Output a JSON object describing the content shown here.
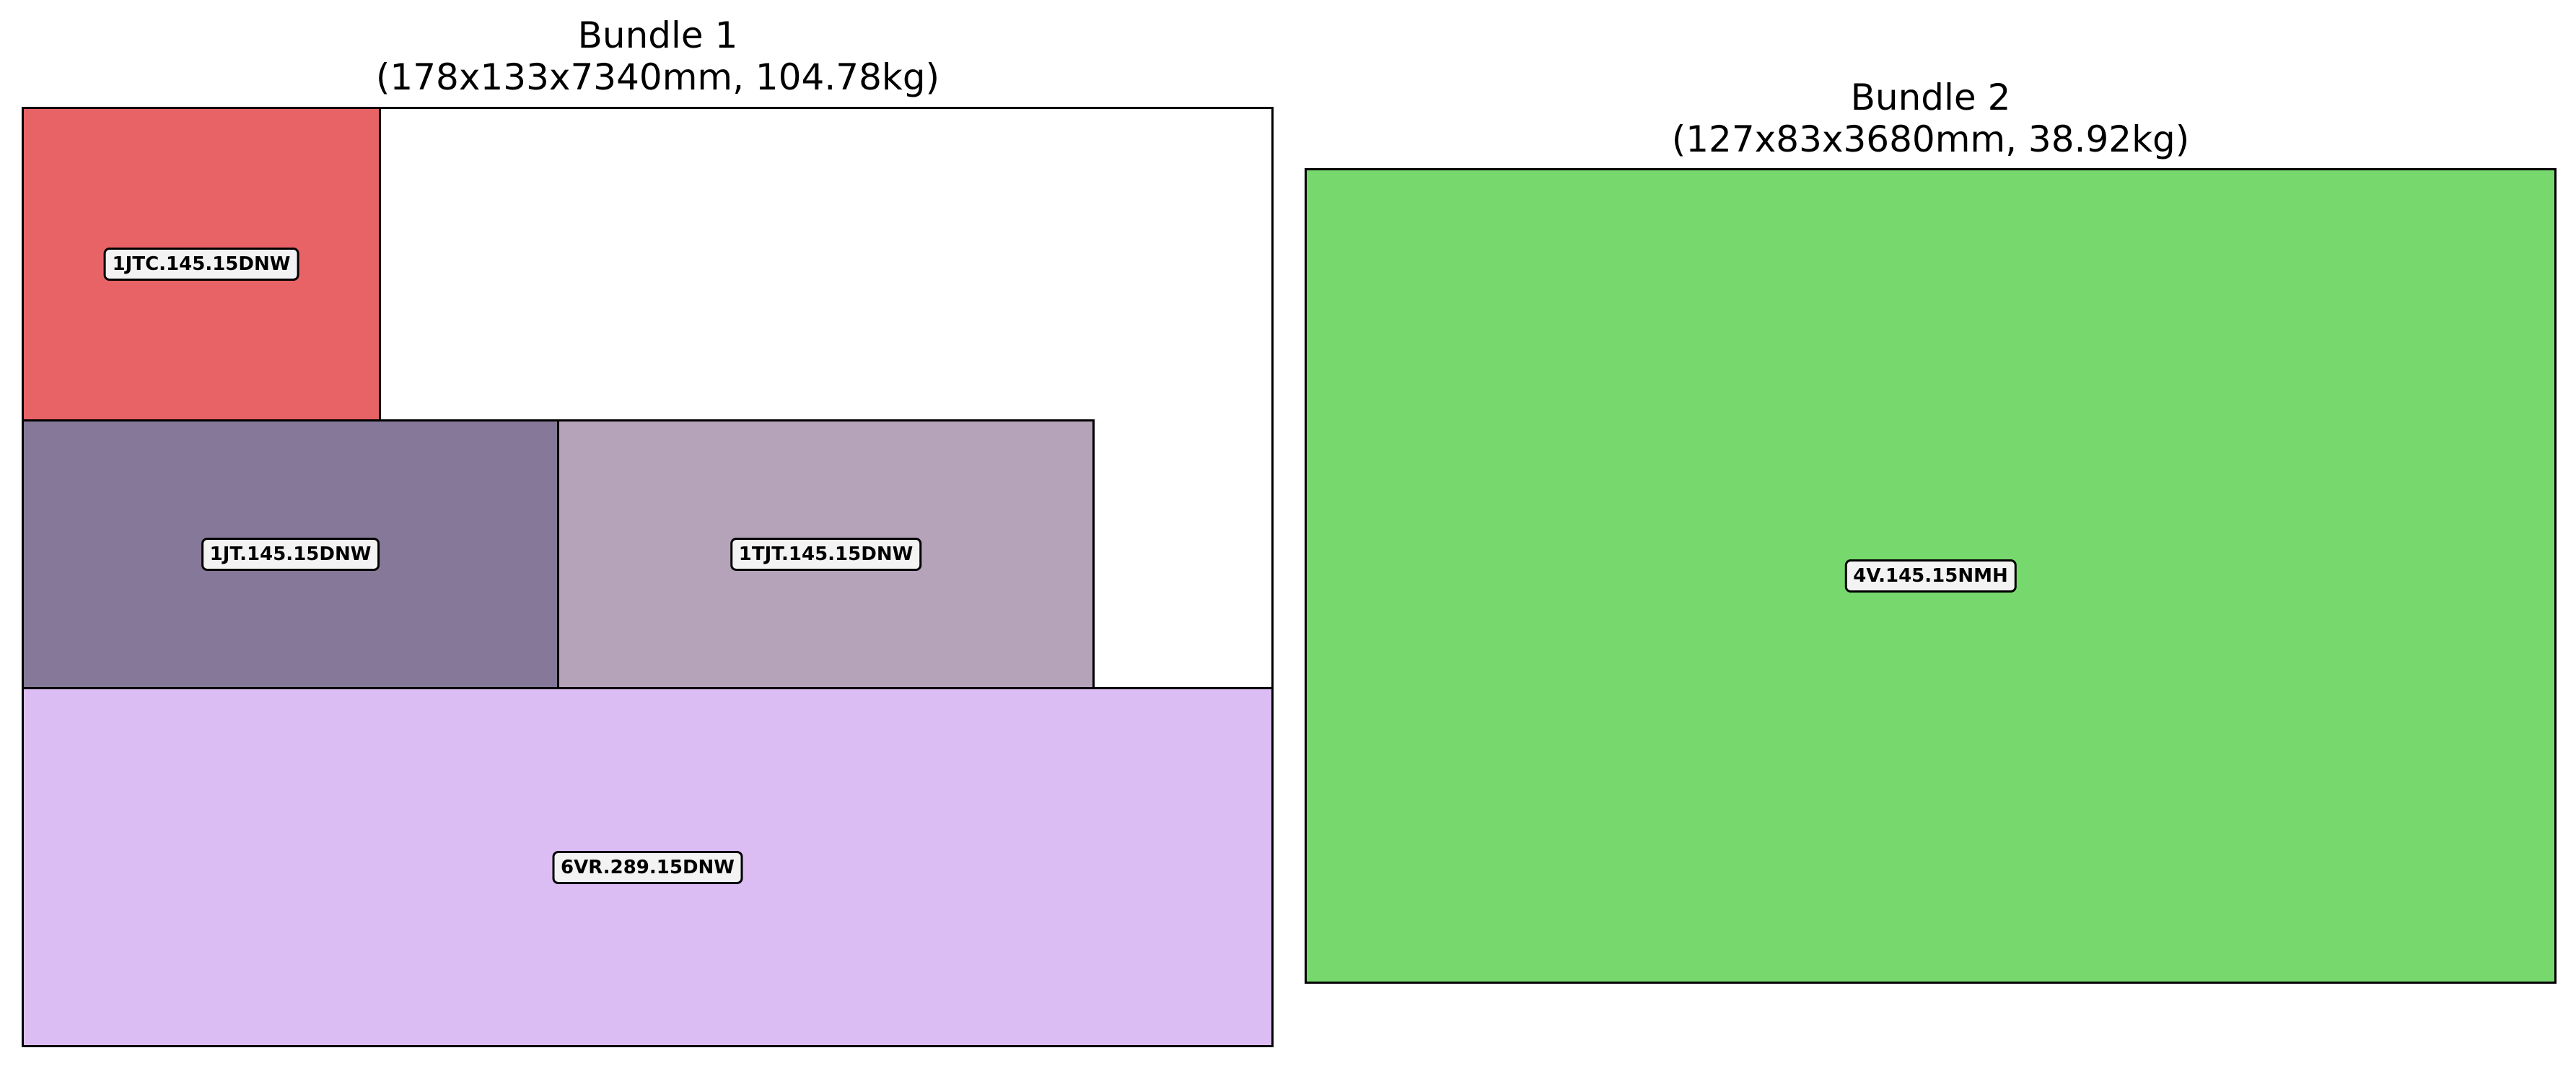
{
  "bundles": [
    {
      "title": "Bundle 1",
      "subtitle": "(178x133x7340mm, 104.78kg)",
      "pieces": [
        {
          "label": "1JTC.145.15DNW",
          "color": "#e86365"
        },
        {
          "label": "1JT.145.15DNW",
          "color": "#867899"
        },
        {
          "label": "1TJT.145.15DNW",
          "color": "#b5a3ba"
        },
        {
          "label": "6VR.289.15DNW",
          "color": "#dbbdf4"
        }
      ]
    },
    {
      "title": "Bundle 2",
      "subtitle": "(127x83x3680mm, 38.92kg)",
      "pieces": [
        {
          "label": "4V.145.15NMH",
          "color": "#77d96d"
        }
      ]
    }
  ]
}
